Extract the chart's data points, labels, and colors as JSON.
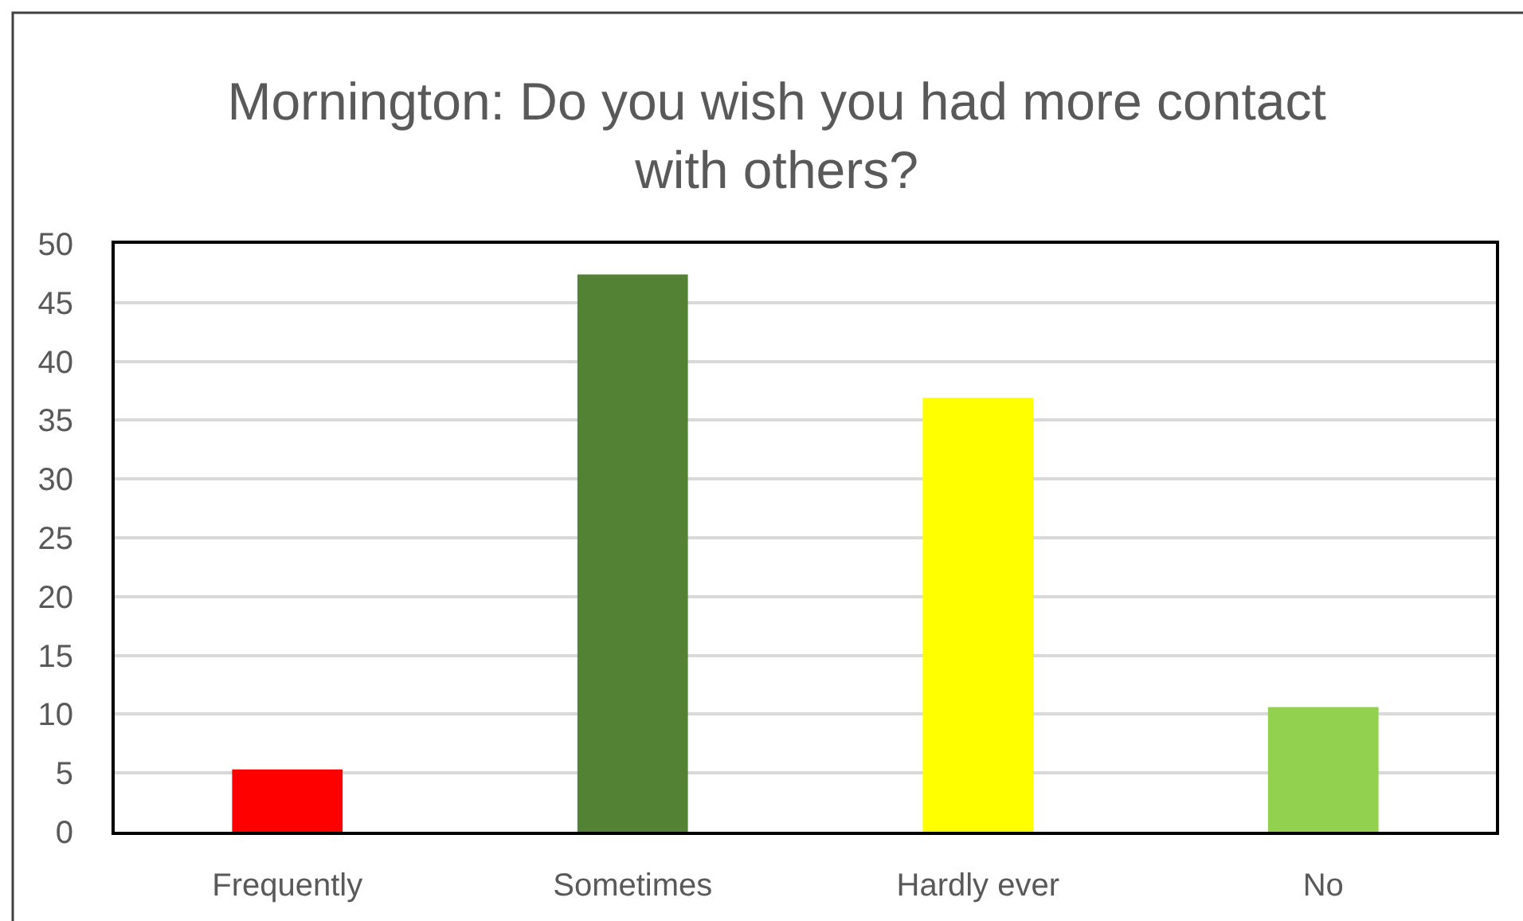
{
  "chart_data": {
    "type": "bar",
    "title": "Mornington: Do you wish you had more contact with others?",
    "categories": [
      "Frequently",
      "Sometimes",
      "Hardly ever",
      "No"
    ],
    "values": [
      5.3,
      47.4,
      36.9,
      10.6
    ],
    "colors": [
      "#ff0000",
      "#548235",
      "#ffff00",
      "#92d050"
    ],
    "ylim": [
      0,
      50
    ],
    "yticks": [
      0,
      5,
      10,
      15,
      20,
      25,
      30,
      35,
      40,
      45,
      50
    ],
    "grid": "y",
    "legend": false
  }
}
